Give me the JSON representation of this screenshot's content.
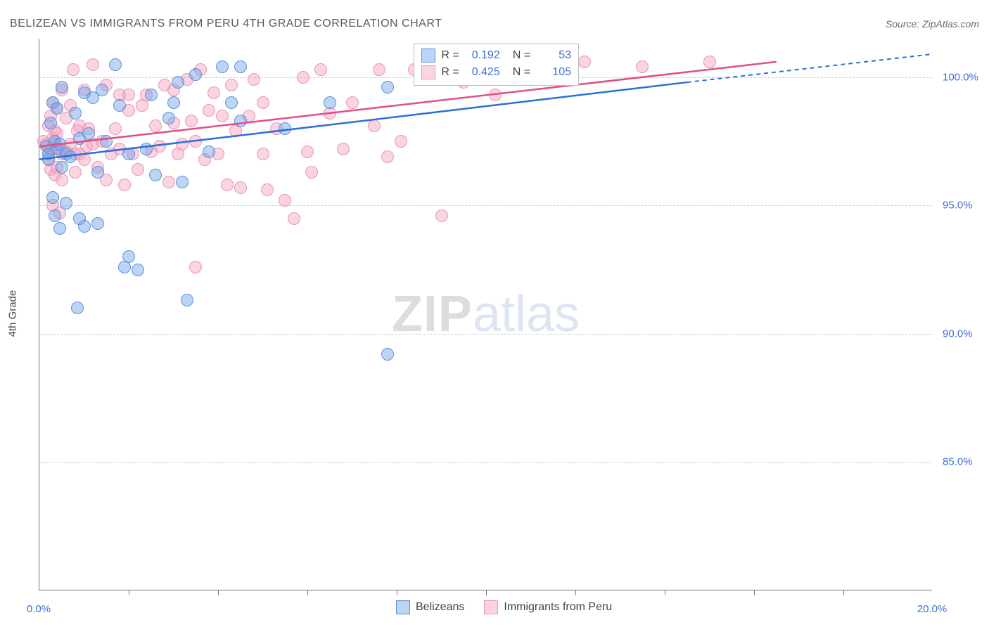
{
  "header": {
    "title": "BELIZEAN VS IMMIGRANTS FROM PERU 4TH GRADE CORRELATION CHART",
    "source_prefix": "Source: ",
    "source_name": "ZipAtlas.com"
  },
  "watermark": {
    "part1": "ZIP",
    "part2": "atlas"
  },
  "chart": {
    "type": "scatter",
    "ylabel": "4th Grade",
    "background_color": "#ffffff",
    "grid_color": "#cccccc",
    "axis_color": "#777777",
    "xlim": [
      0,
      20
    ],
    "ylim": [
      80,
      101.5
    ],
    "yticks": [
      {
        "v": 85,
        "label": "85.0%"
      },
      {
        "v": 90,
        "label": "90.0%"
      },
      {
        "v": 95,
        "label": "95.0%"
      },
      {
        "v": 100,
        "label": "100.0%"
      }
    ],
    "xticks_major": [
      {
        "v": 0,
        "label": "0.0%"
      },
      {
        "v": 20,
        "label": "20.0%"
      }
    ],
    "xticks_minor": [
      2,
      4,
      6,
      8,
      10,
      12,
      14,
      16,
      18
    ],
    "series": [
      {
        "id": "belizeans",
        "label": "Belizeans",
        "fill": "rgba(109,160,232,0.45)",
        "stroke": "#5a93d8",
        "line_color": "#2b6fd6",
        "marker_r": 9,
        "R": "0.192",
        "N": "53",
        "trend": {
          "x1": 0,
          "y1": 96.8,
          "x2": 14.5,
          "y2": 99.8,
          "dash_x2": 20,
          "dash_y2": 100.9
        },
        "points": [
          [
            0.15,
            97.3
          ],
          [
            0.2,
            97.0
          ],
          [
            0.2,
            96.8
          ],
          [
            0.25,
            98.2
          ],
          [
            0.3,
            99.0
          ],
          [
            0.3,
            95.3
          ],
          [
            0.35,
            97.5
          ],
          [
            0.35,
            94.6
          ],
          [
            0.4,
            98.8
          ],
          [
            0.4,
            97.2
          ],
          [
            0.45,
            97.4
          ],
          [
            0.45,
            94.1
          ],
          [
            0.5,
            99.6
          ],
          [
            0.5,
            96.5
          ],
          [
            0.6,
            97.0
          ],
          [
            0.6,
            95.1
          ],
          [
            0.7,
            96.9
          ],
          [
            0.8,
            98.6
          ],
          [
            0.85,
            91.0
          ],
          [
            0.9,
            97.6
          ],
          [
            0.9,
            94.5
          ],
          [
            1.0,
            99.4
          ],
          [
            1.0,
            94.2
          ],
          [
            1.1,
            97.8
          ],
          [
            1.2,
            99.2
          ],
          [
            1.3,
            96.3
          ],
          [
            1.3,
            94.3
          ],
          [
            1.4,
            99.5
          ],
          [
            1.5,
            97.5
          ],
          [
            1.7,
            100.5
          ],
          [
            1.8,
            98.9
          ],
          [
            1.9,
            92.6
          ],
          [
            2.0,
            93.0
          ],
          [
            2.0,
            97.0
          ],
          [
            2.2,
            92.5
          ],
          [
            2.4,
            97.2
          ],
          [
            2.5,
            99.3
          ],
          [
            2.6,
            96.2
          ],
          [
            2.9,
            98.4
          ],
          [
            3.0,
            99.0
          ],
          [
            3.1,
            99.8
          ],
          [
            3.2,
            95.9
          ],
          [
            3.3,
            91.3
          ],
          [
            3.5,
            100.1
          ],
          [
            3.8,
            97.1
          ],
          [
            4.1,
            100.4
          ],
          [
            4.3,
            99.0
          ],
          [
            4.5,
            98.3
          ],
          [
            4.5,
            100.4
          ],
          [
            5.5,
            98.0
          ],
          [
            6.5,
            99.0
          ],
          [
            7.8,
            89.2
          ],
          [
            7.8,
            99.6
          ]
        ]
      },
      {
        "id": "peru",
        "label": "Immigrants from Peru",
        "fill": "rgba(244,160,188,0.45)",
        "stroke": "#e995b6",
        "line_color": "#e24d86",
        "marker_r": 9,
        "R": "0.425",
        "N": "105",
        "trend": {
          "x1": 0,
          "y1": 97.3,
          "x2": 16.5,
          "y2": 100.6,
          "dash_x2": null,
          "dash_y2": null
        },
        "points": [
          [
            0.1,
            97.5
          ],
          [
            0.15,
            97.4
          ],
          [
            0.2,
            97.0
          ],
          [
            0.2,
            96.8
          ],
          [
            0.2,
            98.1
          ],
          [
            0.25,
            98.5
          ],
          [
            0.25,
            97.2
          ],
          [
            0.25,
            96.4
          ],
          [
            0.3,
            99.0
          ],
          [
            0.3,
            97.6
          ],
          [
            0.3,
            95.0
          ],
          [
            0.35,
            97.4
          ],
          [
            0.35,
            97.9
          ],
          [
            0.35,
            96.2
          ],
          [
            0.4,
            98.8
          ],
          [
            0.4,
            96.5
          ],
          [
            0.4,
            97.8
          ],
          [
            0.45,
            97.2
          ],
          [
            0.45,
            94.7
          ],
          [
            0.5,
            99.5
          ],
          [
            0.5,
            97.0
          ],
          [
            0.5,
            96.0
          ],
          [
            0.55,
            97.1
          ],
          [
            0.6,
            97.1
          ],
          [
            0.6,
            98.4
          ],
          [
            0.7,
            97.4
          ],
          [
            0.7,
            98.9
          ],
          [
            0.75,
            100.3
          ],
          [
            0.8,
            97.0
          ],
          [
            0.8,
            96.3
          ],
          [
            0.85,
            97.9
          ],
          [
            0.9,
            98.1
          ],
          [
            0.9,
            97.0
          ],
          [
            1.0,
            99.5
          ],
          [
            1.0,
            96.8
          ],
          [
            1.05,
            97.3
          ],
          [
            1.1,
            98.0
          ],
          [
            1.2,
            100.5
          ],
          [
            1.2,
            97.4
          ],
          [
            1.3,
            96.5
          ],
          [
            1.4,
            97.5
          ],
          [
            1.5,
            99.7
          ],
          [
            1.5,
            96.0
          ],
          [
            1.6,
            97.0
          ],
          [
            1.7,
            98.0
          ],
          [
            1.8,
            99.3
          ],
          [
            1.8,
            97.2
          ],
          [
            1.9,
            95.8
          ],
          [
            2.0,
            98.7
          ],
          [
            2.0,
            99.3
          ],
          [
            2.1,
            97.0
          ],
          [
            2.2,
            96.4
          ],
          [
            2.3,
            98.9
          ],
          [
            2.4,
            99.3
          ],
          [
            2.5,
            97.1
          ],
          [
            2.6,
            98.1
          ],
          [
            2.7,
            97.3
          ],
          [
            2.8,
            99.7
          ],
          [
            2.9,
            95.9
          ],
          [
            3.0,
            98.2
          ],
          [
            3.0,
            99.5
          ],
          [
            3.1,
            97.0
          ],
          [
            3.2,
            97.4
          ],
          [
            3.3,
            99.9
          ],
          [
            3.4,
            98.3
          ],
          [
            3.5,
            92.6
          ],
          [
            3.5,
            97.5
          ],
          [
            3.6,
            100.3
          ],
          [
            3.7,
            96.8
          ],
          [
            3.8,
            98.7
          ],
          [
            3.9,
            99.4
          ],
          [
            4.0,
            97.0
          ],
          [
            4.1,
            98.5
          ],
          [
            4.2,
            95.8
          ],
          [
            4.3,
            99.7
          ],
          [
            4.4,
            97.9
          ],
          [
            4.5,
            95.7
          ],
          [
            4.7,
            98.5
          ],
          [
            4.8,
            99.9
          ],
          [
            5.0,
            97.0
          ],
          [
            5.0,
            99.0
          ],
          [
            5.1,
            95.6
          ],
          [
            5.3,
            98.0
          ],
          [
            5.5,
            95.2
          ],
          [
            5.7,
            94.5
          ],
          [
            5.9,
            100.0
          ],
          [
            6.0,
            97.1
          ],
          [
            6.1,
            96.3
          ],
          [
            6.3,
            100.3
          ],
          [
            6.5,
            98.6
          ],
          [
            6.8,
            97.2
          ],
          [
            7.0,
            99.0
          ],
          [
            7.5,
            98.1
          ],
          [
            7.6,
            100.3
          ],
          [
            7.8,
            96.9
          ],
          [
            8.1,
            97.5
          ],
          [
            8.4,
            100.3
          ],
          [
            9.0,
            94.6
          ],
          [
            9.5,
            99.8
          ],
          [
            10.2,
            99.3
          ],
          [
            10.7,
            100.5
          ],
          [
            11.4,
            100.3
          ],
          [
            12.2,
            100.6
          ],
          [
            13.5,
            100.4
          ],
          [
            15.0,
            100.6
          ]
        ]
      }
    ]
  },
  "stats_box": {
    "r_label": "R =",
    "n_label": "N ="
  }
}
